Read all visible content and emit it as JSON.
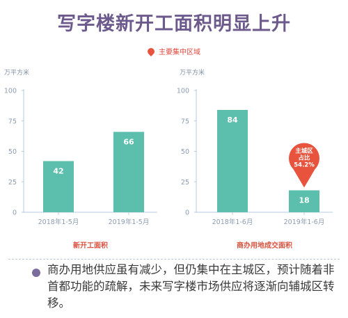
{
  "title": "写字楼新开工面积明显上升",
  "legend": {
    "label": "主要集中区域",
    "color": "#e8533e"
  },
  "colors": {
    "bar": "#5cbfad",
    "axis": "#b7cbe0",
    "tick_text": "#8a9bb0",
    "footer_label": "#d9533f",
    "callout": "#e8533e"
  },
  "chart_data": [
    {
      "type": "bar",
      "unit": "万平方米",
      "title": "新开工面积",
      "categories": [
        "2018年1-5月",
        "2019年1-5月"
      ],
      "values": [
        42,
        66
      ],
      "ylim": [
        0,
        100
      ],
      "yticks": [
        0,
        25,
        50,
        75,
        100
      ]
    },
    {
      "type": "bar",
      "unit": "万平方米",
      "title": "商办用地成交面积",
      "categories": [
        "2018年1-6月",
        "2019年1-6月"
      ],
      "values": [
        84,
        18
      ],
      "ylim": [
        0,
        100
      ],
      "yticks": [
        0,
        25,
        50,
        75,
        100
      ],
      "callout": {
        "bar_index": 1,
        "lines": [
          "主城区",
          "占比",
          "54.2%"
        ]
      }
    }
  ],
  "description": "商办用地供应虽有减少，但仍集中在主城区，预计随着非首都功能的疏解，未来写字楼市场供应将逐渐向辅城区转移。"
}
